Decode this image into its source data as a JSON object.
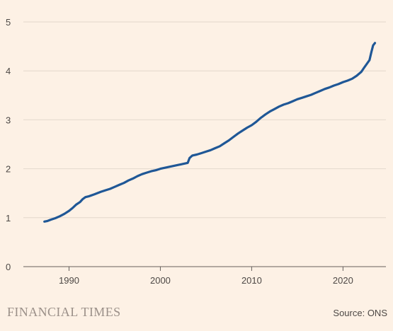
{
  "chart_data": {
    "type": "line",
    "title": "",
    "xlabel": "",
    "ylabel": "",
    "xlim": [
      1985,
      2024.7
    ],
    "ylim": [
      0,
      5
    ],
    "x_ticks": [
      1990,
      2000,
      2010,
      2020
    ],
    "y_ticks": [
      0,
      1,
      2,
      3,
      4,
      5
    ],
    "grid": "horizontal",
    "series": [
      {
        "color": "#1f5796",
        "points": [
          [
            1987.3,
            0.92
          ],
          [
            1987.6,
            0.93
          ],
          [
            1988.0,
            0.96
          ],
          [
            1988.5,
            0.99
          ],
          [
            1989.0,
            1.03
          ],
          [
            1989.5,
            1.08
          ],
          [
            1990.0,
            1.14
          ],
          [
            1990.4,
            1.2
          ],
          [
            1990.8,
            1.27
          ],
          [
            1991.2,
            1.32
          ],
          [
            1991.5,
            1.38
          ],
          [
            1991.8,
            1.42
          ],
          [
            1992.2,
            1.44
          ],
          [
            1992.8,
            1.48
          ],
          [
            1993.5,
            1.53
          ],
          [
            1994.0,
            1.56
          ],
          [
            1994.5,
            1.59
          ],
          [
            1995.0,
            1.63
          ],
          [
            1995.5,
            1.67
          ],
          [
            1996.0,
            1.71
          ],
          [
            1996.5,
            1.76
          ],
          [
            1997.0,
            1.8
          ],
          [
            1997.5,
            1.85
          ],
          [
            1998.0,
            1.89
          ],
          [
            1998.5,
            1.92
          ],
          [
            1999.0,
            1.95
          ],
          [
            1999.5,
            1.97
          ],
          [
            2000.0,
            2.0
          ],
          [
            2000.5,
            2.02
          ],
          [
            2001.0,
            2.04
          ],
          [
            2001.5,
            2.06
          ],
          [
            2002.0,
            2.08
          ],
          [
            2002.5,
            2.1
          ],
          [
            2003.0,
            2.12
          ],
          [
            2003.2,
            2.22
          ],
          [
            2003.5,
            2.27
          ],
          [
            2004.0,
            2.29
          ],
          [
            2004.5,
            2.32
          ],
          [
            2005.0,
            2.35
          ],
          [
            2005.5,
            2.38
          ],
          [
            2006.0,
            2.42
          ],
          [
            2006.5,
            2.46
          ],
          [
            2007.0,
            2.52
          ],
          [
            2007.5,
            2.58
          ],
          [
            2008.0,
            2.65
          ],
          [
            2008.5,
            2.72
          ],
          [
            2009.0,
            2.78
          ],
          [
            2009.5,
            2.84
          ],
          [
            2010.0,
            2.89
          ],
          [
            2010.5,
            2.96
          ],
          [
            2011.0,
            3.04
          ],
          [
            2011.5,
            3.11
          ],
          [
            2012.0,
            3.17
          ],
          [
            2012.5,
            3.22
          ],
          [
            2013.0,
            3.27
          ],
          [
            2013.5,
            3.31
          ],
          [
            2014.0,
            3.34
          ],
          [
            2014.5,
            3.38
          ],
          [
            2015.0,
            3.42
          ],
          [
            2015.5,
            3.45
          ],
          [
            2016.0,
            3.48
          ],
          [
            2016.5,
            3.51
          ],
          [
            2017.0,
            3.55
          ],
          [
            2017.5,
            3.59
          ],
          [
            2018.0,
            3.63
          ],
          [
            2018.5,
            3.66
          ],
          [
            2019.0,
            3.7
          ],
          [
            2019.5,
            3.73
          ],
          [
            2020.0,
            3.77
          ],
          [
            2020.5,
            3.8
          ],
          [
            2021.0,
            3.84
          ],
          [
            2021.5,
            3.9
          ],
          [
            2022.0,
            3.98
          ],
          [
            2022.3,
            4.06
          ],
          [
            2022.6,
            4.14
          ],
          [
            2022.9,
            4.22
          ],
          [
            2023.1,
            4.38
          ],
          [
            2023.3,
            4.52
          ],
          [
            2023.5,
            4.57
          ]
        ]
      }
    ]
  },
  "footer": {
    "brand": "FINANCIAL TIMES",
    "source": "Source: ONS"
  }
}
